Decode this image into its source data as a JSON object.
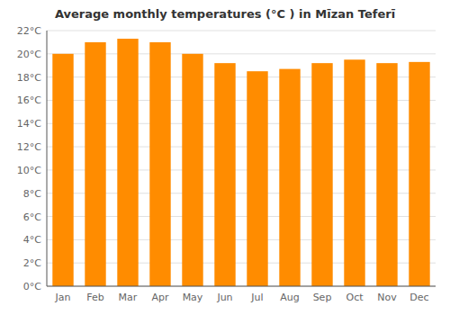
{
  "chart_data": {
    "type": "bar",
    "title": "Average monthly temperatures (°C ) in Mīzan Teferī",
    "categories": [
      "Jan",
      "Feb",
      "Mar",
      "Apr",
      "May",
      "Jun",
      "Jul",
      "Aug",
      "Sep",
      "Oct",
      "Nov",
      "Dec"
    ],
    "values": [
      20.0,
      21.0,
      21.3,
      21.0,
      20.0,
      19.2,
      18.5,
      18.7,
      19.2,
      19.5,
      19.2,
      19.3
    ],
    "color": "#FF8C00",
    "ylim": [
      0,
      22
    ],
    "yticks": [
      {
        "value": 0,
        "label": "0°C"
      },
      {
        "value": 2,
        "label": "2°C"
      },
      {
        "value": 4,
        "label": "4°C"
      },
      {
        "value": 6,
        "label": "6°C"
      },
      {
        "value": 8,
        "label": "8°C"
      },
      {
        "value": 10,
        "label": "10°C"
      },
      {
        "value": 12,
        "label": "12°C"
      },
      {
        "value": 14,
        "label": "14°C"
      },
      {
        "value": 16,
        "label": "16°C"
      },
      {
        "value": 18,
        "label": "18°C"
      },
      {
        "value": 20,
        "label": "20°C"
      },
      {
        "value": 22,
        "label": "22°C"
      }
    ],
    "grid": true
  }
}
